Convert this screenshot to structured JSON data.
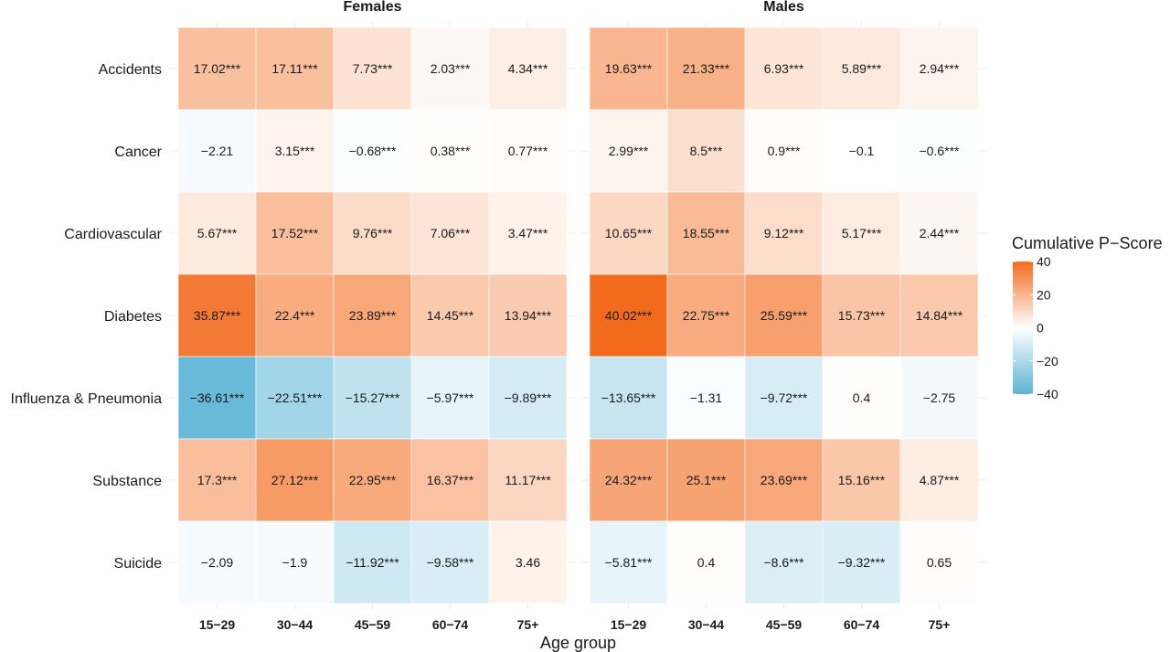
{
  "chart_data": {
    "type": "heatmap",
    "title": "",
    "xlabel": "Age group",
    "ylabel": "",
    "facets": [
      "Females",
      "Males"
    ],
    "x_categories": [
      "15−29",
      "30−44",
      "45−59",
      "60−74",
      "75+"
    ],
    "y_categories": [
      "Accidents",
      "Cancer",
      "Cardiovascular",
      "Diabetes",
      "Influenza & Pneumonia",
      "Substance",
      "Suicide"
    ],
    "cells": {
      "Females": [
        {
          "values": [
            17.02,
            17.11,
            7.73,
            2.03,
            4.34
          ],
          "labels": [
            "17.02***",
            "17.11***",
            "7.73***",
            "2.03***",
            "4.34***"
          ]
        },
        {
          "values": [
            -2.21,
            3.15,
            -0.68,
            0.38,
            0.77
          ],
          "labels": [
            "−2.21",
            "3.15***",
            "−0.68***",
            "0.38***",
            "0.77***"
          ]
        },
        {
          "values": [
            5.67,
            17.52,
            9.76,
            7.06,
            3.47
          ],
          "labels": [
            "5.67***",
            "17.52***",
            "9.76***",
            "7.06***",
            "3.47***"
          ]
        },
        {
          "values": [
            35.87,
            22.4,
            23.89,
            14.45,
            13.94
          ],
          "labels": [
            "35.87***",
            "22.4***",
            "23.89***",
            "14.45***",
            "13.94***"
          ]
        },
        {
          "values": [
            -36.61,
            -22.51,
            -15.27,
            -5.97,
            -9.89
          ],
          "labels": [
            "−36.61***",
            "−22.51***",
            "−15.27***",
            "−5.97***",
            "−9.89***"
          ]
        },
        {
          "values": [
            17.3,
            27.12,
            22.95,
            16.37,
            11.17
          ],
          "labels": [
            "17.3***",
            "27.12***",
            "22.95***",
            "16.37***",
            "11.17***"
          ]
        },
        {
          "values": [
            -2.09,
            -1.9,
            -11.92,
            -9.58,
            3.46
          ],
          "labels": [
            "−2.09",
            "−1.9",
            "−11.92***",
            "−9.58***",
            "3.46"
          ]
        }
      ],
      "Males": [
        {
          "values": [
            19.63,
            21.33,
            6.93,
            5.89,
            2.94
          ],
          "labels": [
            "19.63***",
            "21.33***",
            "6.93***",
            "5.89***",
            "2.94***"
          ]
        },
        {
          "values": [
            2.99,
            8.5,
            0.9,
            -0.1,
            -0.6
          ],
          "labels": [
            "2.99***",
            "8.5***",
            "0.9***",
            "−0.1",
            "−0.6***"
          ]
        },
        {
          "values": [
            10.65,
            18.55,
            9.12,
            5.17,
            2.44
          ],
          "labels": [
            "10.65***",
            "18.55***",
            "9.12***",
            "5.17***",
            "2.44***"
          ]
        },
        {
          "values": [
            40.02,
            22.75,
            25.59,
            15.73,
            14.84
          ],
          "labels": [
            "40.02***",
            "22.75***",
            "25.59***",
            "15.73***",
            "14.84***"
          ]
        },
        {
          "values": [
            -13.65,
            -1.31,
            -9.72,
            0.4,
            -2.75
          ],
          "labels": [
            "−13.65***",
            "−1.31",
            "−9.72***",
            "0.4",
            "−2.75"
          ]
        },
        {
          "values": [
            24.32,
            25.1,
            23.69,
            15.16,
            4.87
          ],
          "labels": [
            "24.32***",
            "25.1***",
            "23.69***",
            "15.16***",
            "4.87***"
          ]
        },
        {
          "values": [
            -5.81,
            0.4,
            -8.6,
            -9.32,
            0.65
          ],
          "labels": [
            "−5.81***",
            "0.4",
            "−8.6***",
            "−9.32***",
            "0.65"
          ]
        }
      ]
    },
    "legend": {
      "title": "Cumulative P−Score",
      "ticks": [
        40,
        20,
        0,
        -20,
        -40
      ],
      "tick_labels": [
        "40",
        "20",
        "0",
        "−20",
        "−40"
      ],
      "range": [
        -40,
        40
      ],
      "placement": "right"
    },
    "colors": {
      "high": "#f26b1d",
      "mid": "#ffffff",
      "low": "#5bb4d6",
      "grid": "#ebebeb"
    },
    "grid": true
  }
}
